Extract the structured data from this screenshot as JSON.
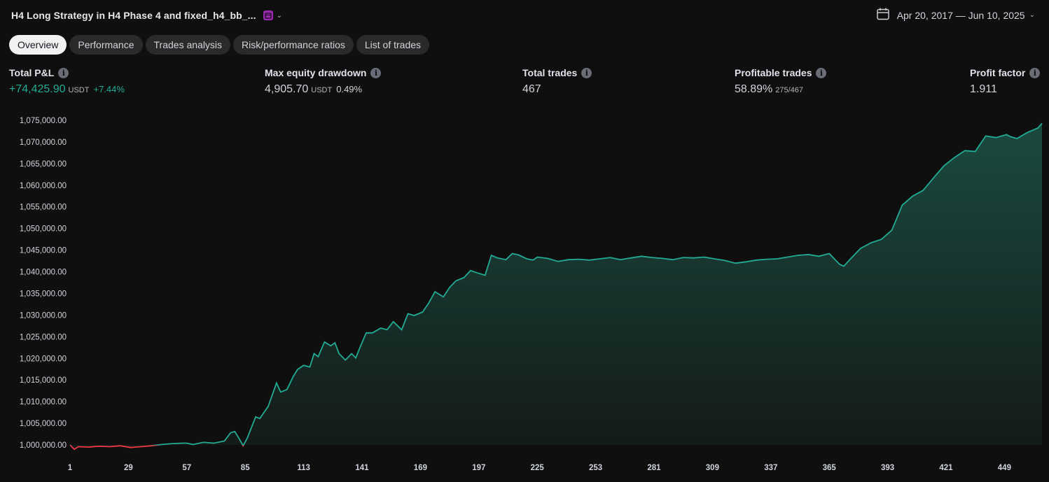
{
  "header": {
    "title": "H4 Long Strategy in H4 Phase 4 and fixed_h4_bb_...",
    "date_range": "Apr 20, 2017 — Jun 10, 2025"
  },
  "tabs": [
    {
      "label": "Overview",
      "active": true
    },
    {
      "label": "Performance",
      "active": false
    },
    {
      "label": "Trades analysis",
      "active": false
    },
    {
      "label": "Risk/performance ratios",
      "active": false
    },
    {
      "label": "List of trades",
      "active": false
    }
  ],
  "metrics": {
    "total_pnl": {
      "label": "Total P&L",
      "value": "+74,425.90",
      "unit": "USDT",
      "pct": "+7.44%"
    },
    "max_drawdown": {
      "label": "Max equity drawdown",
      "value": "4,905.70",
      "unit": "USDT",
      "pct": "0.49%"
    },
    "total_trades": {
      "label": "Total trades",
      "value": "467"
    },
    "profitable_trades": {
      "label": "Profitable trades",
      "value": "58.89%",
      "sub": "275/467"
    },
    "profit_factor": {
      "label": "Profit factor",
      "value": "1.911"
    }
  },
  "colors": {
    "up": "#22ab94",
    "down": "#f23645",
    "area_top": "#1a4a3f",
    "area_bottom": "#141a18"
  },
  "chart_data": {
    "type": "area",
    "title": "",
    "xlabel": "",
    "ylabel": "",
    "y_ticks": [
      "1,000,000.00",
      "1,005,000.00",
      "1,010,000.00",
      "1,015,000.00",
      "1,020,000.00",
      "1,025,000.00",
      "1,030,000.00",
      "1,035,000.00",
      "1,040,000.00",
      "1,045,000.00",
      "1,050,000.00",
      "1,055,000.00",
      "1,060,000.00",
      "1,065,000.00",
      "1,070,000.00",
      "1,075,000.00"
    ],
    "x_ticks": [
      "1",
      "29",
      "57",
      "85",
      "113",
      "141",
      "169",
      "197",
      "225",
      "253",
      "281",
      "309",
      "337",
      "365",
      "393",
      "421",
      "449"
    ],
    "ylim": [
      1000000,
      1075000
    ],
    "xlim": [
      1,
      467
    ],
    "baseline": 1000000,
    "series": [
      {
        "x": [
          1,
          3,
          5,
          10,
          15,
          20,
          25,
          30,
          35,
          40,
          45,
          50,
          55,
          57,
          60,
          65,
          70,
          75,
          78,
          80,
          82,
          84,
          86,
          90,
          92,
          96,
          100,
          102,
          105,
          108,
          110,
          113,
          116,
          118,
          120,
          123,
          126,
          128,
          130,
          133,
          136,
          138,
          140,
          143,
          146,
          150,
          153,
          156,
          160,
          163,
          166,
          170,
          173,
          176,
          180,
          183,
          186,
          190,
          193,
          196,
          200,
          203,
          206,
          210,
          213,
          216,
          220,
          223,
          225,
          230,
          235,
          240,
          245,
          250,
          255,
          260,
          265,
          270,
          275,
          280,
          285,
          290,
          295,
          300,
          305,
          310,
          315,
          320,
          325,
          330,
          335,
          340,
          345,
          350,
          355,
          360,
          365,
          370,
          372,
          375,
          380,
          385,
          390,
          395,
          400,
          405,
          410,
          415,
          420,
          425,
          430,
          435,
          440,
          445,
          450,
          452,
          455,
          460,
          465,
          467
        ],
        "y": [
          1000000,
          999000,
          999600,
          999500,
          999700,
          999600,
          999800,
          999400,
          999600,
          999800,
          1000100,
          1000300,
          1000400,
          1000400,
          1000100,
          1000600,
          1000400,
          1000900,
          1002800,
          1003100,
          1001500,
          999800,
          1001600,
          1006500,
          1006100,
          1008900,
          1014300,
          1012200,
          1012800,
          1015800,
          1017400,
          1018400,
          1018000,
          1021100,
          1020400,
          1023800,
          1022900,
          1023600,
          1021100,
          1019600,
          1021100,
          1020100,
          1022500,
          1025900,
          1025900,
          1027000,
          1026600,
          1028500,
          1026600,
          1030300,
          1029900,
          1030700,
          1032800,
          1035400,
          1034200,
          1036400,
          1037900,
          1038700,
          1040300,
          1039800,
          1039200,
          1043800,
          1043200,
          1042800,
          1044200,
          1043900,
          1043000,
          1042700,
          1043400,
          1043100,
          1042400,
          1042800,
          1042900,
          1042700,
          1043000,
          1043300,
          1042800,
          1043200,
          1043600,
          1043300,
          1043100,
          1042800,
          1043300,
          1043200,
          1043400,
          1043000,
          1042600,
          1042000,
          1042300,
          1042700,
          1042900,
          1043000,
          1043400,
          1043800,
          1044000,
          1043600,
          1044200,
          1041700,
          1041300,
          1042900,
          1045400,
          1046700,
          1047500,
          1049600,
          1055400,
          1057500,
          1058800,
          1061700,
          1064500,
          1066400,
          1068000,
          1067800,
          1071400,
          1071000,
          1071700,
          1071200,
          1070800,
          1072200,
          1073200,
          1074300
        ]
      }
    ]
  }
}
